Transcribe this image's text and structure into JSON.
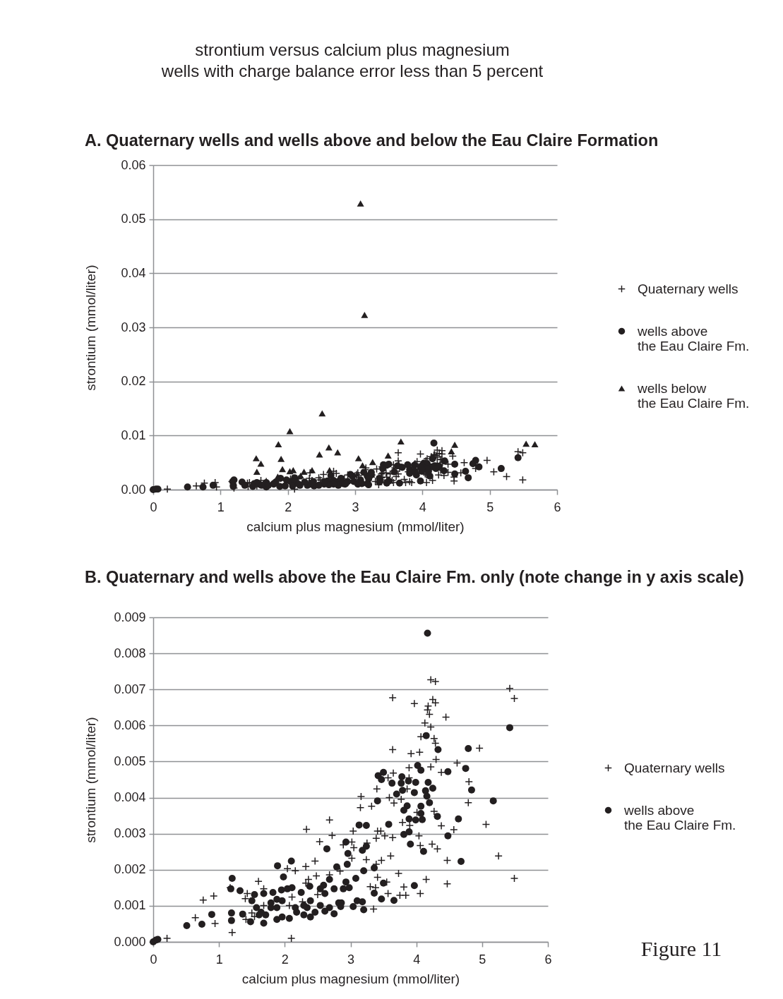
{
  "chart_data": [
    {
      "type": "scatter",
      "title": "A. Quaternary wells and wells above and below the Eau Claire Formation",
      "annotations": [
        "strontium versus calcium plus magnesium",
        "wells with charge balance error less than 5 percent"
      ],
      "xlabel": "calcium plus magnesium (mmol/liter)",
      "ylabel": "strontium (mmol/liter)",
      "xlim": [
        0,
        6
      ],
      "xticks": [
        0,
        1,
        2,
        3,
        4,
        5,
        6
      ],
      "ylim": [
        0,
        0.06
      ],
      "yticks": [
        {
          "value": 0,
          "label": "0.00"
        },
        0.01,
        0.02,
        0.03,
        0.04,
        0.05,
        0.06
      ],
      "grid": "y",
      "legend": "right",
      "series": [
        {
          "name": "Quaternary wells",
          "color": "#231f20",
          "marker": "cross",
          "x": [
            0.21,
            0.64,
            0.76,
            0.92,
            0.94,
            1.2,
            1.17,
            1.6,
            1.43,
            1.4,
            1.41,
            1.68,
            2.04,
            2.16,
            2.1,
            2.33,
            2.68,
            2.72,
            2.53,
            2.46,
            2.32,
            2.48,
            2.36,
            2.32,
            2.5,
            2.89,
            1.54,
            5.25,
            5.49,
            4.47,
            4.47,
            4.57,
            4.38,
            4.24,
            4.32,
            4.06,
            4.04,
            3.64,
            3.52,
            3.39,
            3.41,
            3.46,
            3.04,
            3.02,
            3.25,
            3.05,
            3.02,
            3.24,
            3.47,
            3.61,
            3.39,
            3.73,
            3.41,
            3.55,
            3.3,
            3.38,
            3.81,
            4.15,
            4.06,
            3.57,
            3.75,
            3.84,
            3.35,
            2.84,
            4.22,
            4.29,
            5.42,
            5.49,
            3.64,
            3.97,
            4.25,
            4.29,
            4.18,
            4.17,
            4.2,
            4.45,
            4.13,
            4.22,
            4.07,
            4.27,
            4.29,
            3.64,
            3.92,
            4.05,
            4.96,
            4.3,
            4.22,
            3.89,
            4.38,
            4.62,
            4.8,
            3.65,
            3.57,
            3.89,
            3.4,
            3.16,
            3.15,
            3.32,
            3.59,
            3.66,
            4.79,
            4.27,
            3.79,
            5.06
          ],
          "values": [
            0.0001,
            0.0007,
            0.0012,
            0.0013,
            0.0005,
            0.0003,
            0.0015,
            0.0017,
            0.0013,
            0.0012,
            0.0006,
            0.0015,
            0.002,
            0.002,
            0.0001,
            0.0031,
            0.0034,
            0.003,
            0.0028,
            0.0022,
            0.0021,
            0.0018,
            0.0017,
            0.0016,
            0.0013,
            0.0027,
            0.0007,
            0.0024,
            0.0018,
            0.0023,
            0.0016,
            0.0031,
            0.0032,
            0.0027,
            0.0026,
            0.0027,
            0.0029,
            0.0029,
            0.0029,
            0.0029,
            0.0031,
            0.0031,
            0.0031,
            0.0028,
            0.0027,
            0.0026,
            0.0023,
            0.0023,
            0.0023,
            0.0024,
            0.0022,
            0.0019,
            0.0018,
            0.0017,
            0.0015,
            0.0015,
            0.0015,
            0.0017,
            0.0013,
            0.0013,
            0.0013,
            0.0013,
            0.0009,
            0.002,
            0.0073,
            0.0072,
            0.007,
            0.0068,
            0.0068,
            0.0066,
            0.0067,
            0.0066,
            0.0065,
            0.0064,
            0.0063,
            0.0062,
            0.0061,
            0.006,
            0.0057,
            0.0056,
            0.0055,
            0.0053,
            0.0052,
            0.0053,
            0.0054,
            0.0051,
            0.0049,
            0.0048,
            0.0047,
            0.005,
            0.0044,
            0.0047,
            0.0046,
            0.0046,
            0.0042,
            0.004,
            0.0037,
            0.0038,
            0.004,
            0.0039,
            0.0039,
            0.0036,
            0.0033,
            0.0033
          ]
        },
        {
          "name": "wells above the Eau Claire Fm.",
          "color": "#231f20",
          "marker": "circle",
          "x": [
            0,
            0.04,
            0.07,
            0.51,
            0.74,
            0.89,
            1.2,
            1.18,
            1.32,
            1.19,
            1.19,
            1.36,
            1.48,
            1.54,
            1.5,
            1.57,
            1.68,
            1.68,
            1.82,
            1.89,
            1.98,
            2.1,
            2.04,
            2.11,
            1.88,
            1.96,
            2.07,
            2.18,
            2.29,
            2.39,
            2.34,
            2.25,
            2.38,
            2.54,
            2.64,
            2.79,
            2.68,
            2.59,
            2.75,
            2.75,
            2.68,
            2.82,
            1.71,
            1.79,
            2.16,
            2.46,
            2.61,
            2.54,
            1.79,
            1.61,
            4.48,
            4.68,
            3.91,
            4.11,
            3.81,
            2.93,
            2.96,
            3.24,
            3.18,
            3.36,
            3.2,
            3.08,
            3.5,
            3.36,
            3.47,
            3.66,
            3.97,
            2.89,
            2.98,
            2.86,
            3.04,
            3.1,
            3.18,
            3.2,
            2.85,
            4.17,
            5.42,
            4.15,
            4.33,
            4.79,
            4.02,
            4.07,
            4.48,
            4.75,
            4.84,
            5.17,
            3.5,
            3.42,
            3.47,
            3.63,
            3.78,
            3.88,
            3.99,
            4.18,
            4.25,
            3.7,
            3.97,
            4.14,
            4.2,
            3.41,
            3.81,
            4.07,
            4.32,
            3.89,
            3.99,
            4.09,
            4.64,
            3.13,
            3.24,
            3.58
          ],
          "values": [
            0,
            0.0001,
            0.0001,
            0.0005,
            0.0005,
            0.0008,
            0.0018,
            0.0015,
            0.0014,
            0.0008,
            0.0006,
            0.0008,
            0.0006,
            0.0013,
            0.0011,
            0.001,
            0.0013,
            0.0005,
            0.0014,
            0.0021,
            0.0018,
            0.0022,
            0.0015,
            0.0015,
            0.0006,
            0.0007,
            0.0007,
            0.0008,
            0.0008,
            0.0007,
            0.001,
            0.0014,
            0.0015,
            0.001,
            0.0026,
            0.0021,
            0.0017,
            0.0016,
            0.0015,
            0.0008,
            0.001,
            0.0011,
            0.0008,
            0.001,
            0.001,
            0.0008,
            0.0009,
            0.0015,
            0.0011,
            0.0008,
            0.0029,
            0.0022,
            0.0027,
            0.0025,
            0.003,
            0.0028,
            0.0025,
            0.0027,
            0.0025,
            0.0021,
            0.002,
            0.0018,
            0.0016,
            0.0014,
            0.0012,
            0.0012,
            0.0016,
            0.0015,
            0.0015,
            0.0011,
            0.001,
            0.0011,
            0.0011,
            0.0009,
            0.001,
            0.0086,
            0.0059,
            0.0057,
            0.0053,
            0.0054,
            0.0049,
            0.0048,
            0.0047,
            0.0048,
            0.0042,
            0.0039,
            0.0047,
            0.0046,
            0.0045,
            0.0044,
            0.0046,
            0.0045,
            0.0044,
            0.0044,
            0.0043,
            0.0041,
            0.0041,
            0.0042,
            0.0039,
            0.0039,
            0.0037,
            0.0038,
            0.0035,
            0.0034,
            0.0034,
            0.0034,
            0.0034,
            0.0032,
            0.0032,
            0.0033
          ]
        },
        {
          "name": "wells below the Eau Claire Fm.",
          "color": "#231f20",
          "marker": "triangle",
          "x": [
            1.53,
            1.6,
            1.54,
            1.86,
            1.9,
            1.92,
            1.85,
            2.03,
            2.03,
            2.08,
            2.19,
            2.24,
            2.36,
            2.47,
            2.51,
            2.61,
            2.62,
            2.74,
            3.05,
            3.08,
            3.11,
            3.14,
            3.26,
            3.49,
            3.68,
            4.43,
            4.48,
            5.54,
            5.67
          ],
          "values": [
            0.0058,
            0.0048,
            0.0033,
            0.0084,
            0.0057,
            0.0038,
            0.0024,
            0.0108,
            0.0034,
            0.0036,
            0.0026,
            0.0033,
            0.0036,
            0.0065,
            0.0141,
            0.0078,
            0.0036,
            0.0069,
            0.0058,
            0.0529,
            0.0045,
            0.0323,
            0.0051,
            0.0063,
            0.0089,
            0.0071,
            0.0083,
            0.0085,
            0.0084
          ]
        }
      ]
    },
    {
      "type": "scatter",
      "title": "B. Quaternary and wells above the Eau Claire Fm. only (note change in y axis scale)",
      "annotations": [
        "Figure 11"
      ],
      "xlabel": "calcium plus magnesium (mmol/liter)",
      "ylabel": "strontium (mmol/liter)",
      "xlim": [
        0,
        6
      ],
      "xticks": [
        0,
        1,
        2,
        3,
        4,
        5,
        6
      ],
      "ylim": [
        0,
        0.009
      ],
      "yticks": [
        {
          "value": 0,
          "label": "0.000"
        },
        0.001,
        0.002,
        0.003,
        0.004,
        0.005,
        0.006,
        0.007,
        0.008,
        0.009
      ],
      "grid": "y",
      "legend": "right",
      "series": [
        {
          "name": "Quaternary wells",
          "color": "#231f20",
          "marker": "cross",
          "x": [
            0.21,
            0.64,
            0.76,
            0.92,
            0.94,
            1.2,
            1.17,
            1.6,
            1.43,
            1.4,
            1.41,
            1.68,
            1.68,
            2.04,
            2.16,
            2.1,
            2.33,
            2.68,
            2.72,
            2.53,
            2.46,
            2.32,
            2.48,
            2.36,
            2.32,
            2.11,
            2.07,
            2.27,
            2.5,
            2.68,
            2.89,
            1.5,
            1.54,
            5.25,
            5.49,
            4.47,
            4.47,
            4.57,
            4.38,
            4.24,
            4.32,
            4.06,
            4.04,
            3.9,
            3.64,
            3.52,
            3.39,
            3.41,
            3.46,
            3.04,
            3.02,
            3.25,
            3.05,
            3.02,
            3.24,
            3.47,
            3.61,
            3.39,
            3.73,
            3.41,
            3.55,
            3.3,
            3.38,
            3.81,
            4.15,
            4.06,
            3.57,
            3.75,
            3.84,
            3.35,
            2.84,
            4.22,
            4.29,
            5.42,
            5.49,
            3.64,
            3.97,
            4.25,
            4.29,
            4.18,
            4.17,
            4.2,
            4.45,
            4.13,
            4.22,
            4.07,
            4.27,
            4.29,
            3.64,
            3.92,
            4.05,
            4.96,
            4.3,
            4.22,
            3.89,
            4.38,
            4.62,
            4.8,
            3.65,
            3.57,
            3.89,
            3.86,
            3.4,
            3.16,
            3.15,
            3.32,
            3.59,
            3.66,
            3.77,
            4.79,
            4.27,
            4.01,
            3.79,
            5.06
          ],
          "values": [
            0.0001,
            0.00067,
            0.00116,
            0.00127,
            0.00051,
            0.00026,
            0.0015,
            0.00168,
            0.00134,
            0.0012,
            0.00062,
            0.00147,
            0.00101,
            0.00203,
            0.00197,
            0.0001,
            0.00312,
            0.00338,
            0.00295,
            0.00278,
            0.00224,
            0.00209,
            0.00183,
            0.00173,
            0.00163,
            0.00124,
            0.00101,
            0.00111,
            0.00131,
            0.00186,
            0.00269,
            0.0008,
            0.0007,
            0.00238,
            0.00176,
            0.00226,
            0.00161,
            0.00311,
            0.00322,
            0.00271,
            0.00258,
            0.00267,
            0.00294,
            0.00323,
            0.00289,
            0.00294,
            0.00287,
            0.00307,
            0.00307,
            0.00307,
            0.00277,
            0.00274,
            0.00261,
            0.00232,
            0.00228,
            0.00226,
            0.00238,
            0.00215,
            0.0019,
            0.00179,
            0.00166,
            0.00153,
            0.0015,
            0.00152,
            0.00173,
            0.00134,
            0.00134,
            0.00129,
            0.00129,
            0.00091,
            0.00196,
            0.00727,
            0.00722,
            0.00703,
            0.00675,
            0.00677,
            0.00661,
            0.00672,
            0.00663,
            0.00654,
            0.00643,
            0.00631,
            0.00623,
            0.00607,
            0.00596,
            0.00569,
            0.00564,
            0.00551,
            0.00533,
            0.00522,
            0.00526,
            0.00537,
            0.00506,
            0.00485,
            0.00483,
            0.0047,
            0.00496,
            0.00444,
            0.00468,
            0.00455,
            0.00455,
            0.00424,
            0.00424,
            0.00403,
            0.00372,
            0.00376,
            0.004,
            0.00385,
            0.00395,
            0.00386,
            0.00362,
            0.00359,
            0.00331,
            0.00326
          ]
        },
        {
          "name": "wells above the Eau Claire Fm.",
          "color": "#231f20",
          "marker": "circle",
          "x": [
            0,
            0.04,
            0.07,
            0.51,
            0.74,
            0.89,
            1.2,
            1.18,
            1.32,
            1.19,
            1.19,
            1.36,
            1.48,
            1.54,
            1.5,
            1.57,
            1.68,
            1.68,
            1.82,
            1.89,
            1.98,
            2.1,
            1.95,
            2.04,
            2.11,
            1.88,
            1.88,
            1.96,
            2.07,
            2.18,
            2.29,
            2.39,
            2.34,
            2.25,
            2.38,
            2.54,
            2.64,
            2.79,
            2.68,
            2.59,
            2.61,
            2.75,
            2.75,
            2.68,
            2.82,
            1.71,
            1.64,
            1.79,
            1.88,
            1.96,
            2.16,
            2.29,
            2.39,
            2.46,
            2.61,
            2.54,
            1.79,
            1.61,
            4.48,
            4.68,
            3.91,
            4.11,
            3.81,
            3.89,
            2.93,
            2.96,
            3.24,
            3.18,
            2.95,
            3.36,
            3.2,
            3.08,
            3.5,
            3.36,
            3.47,
            3.66,
            3.97,
            2.93,
            2.89,
            2.98,
            2.86,
            3.04,
            3.1,
            3.18,
            3.2,
            2.85,
            4.17,
            5.42,
            4.15,
            4.33,
            4.79,
            4.02,
            4.07,
            4.48,
            4.75,
            4.84,
            5.17,
            3.5,
            3.42,
            3.47,
            3.63,
            3.78,
            3.77,
            3.88,
            3.99,
            4.18,
            4.25,
            3.79,
            3.7,
            3.97,
            4.14,
            4.16,
            4.2,
            3.41,
            3.86,
            3.81,
            4.07,
            4.07,
            4.32,
            3.89,
            3.99,
            4.09,
            4.64,
            3.13,
            3.24,
            3.58
          ],
          "values": [
            0,
            5e-05,
            7e-05,
            0.00045,
            0.00049,
            0.00076,
            0.00176,
            0.00147,
            0.00142,
            0.0008,
            0.00059,
            0.00077,
            0.00056,
            0.00131,
            0.00114,
            0.00095,
            0.00134,
            0.00052,
            0.00137,
            0.00211,
            0.0018,
            0.00224,
            0.00144,
            0.00147,
            0.0015,
            0.00095,
            0.00062,
            0.00069,
            0.00065,
            0.00082,
            0.00075,
            0.00069,
            0.00095,
            0.00137,
            0.00154,
            0.00101,
            0.00258,
            0.00208,
            0.00173,
            0.00157,
            0.00134,
            0.00147,
            0.00078,
            0.00095,
            0.00108,
            0.00075,
            0.00082,
            0.00095,
            0.00118,
            0.00114,
            0.00095,
            0.00101,
            0.00114,
            0.00082,
            0.00085,
            0.00147,
            0.00108,
            0.00075,
            0.00294,
            0.00223,
            0.00271,
            0.00251,
            0.00298,
            0.00305,
            0.00277,
            0.00245,
            0.00265,
            0.00254,
            0.00215,
            0.00205,
            0.00197,
            0.00176,
            0.00163,
            0.00135,
            0.00119,
            0.00115,
            0.00156,
            0.00166,
            0.00147,
            0.0015,
            0.00108,
            0.00098,
            0.00114,
            0.00111,
            0.00089,
            0.00098,
            0.00856,
            0.00594,
            0.00572,
            0.00533,
            0.00536,
            0.00489,
            0.00476,
            0.00472,
            0.00481,
            0.00421,
            0.00391,
            0.0047,
            0.00461,
            0.0045,
            0.0044,
            0.00458,
            0.0044,
            0.00446,
            0.00442,
            0.00442,
            0.00426,
            0.0042,
            0.0041,
            0.00414,
            0.00419,
            0.00404,
            0.00386,
            0.00391,
            0.00377,
            0.00365,
            0.00376,
            0.00356,
            0.00348,
            0.00341,
            0.00338,
            0.00339,
            0.00341,
            0.00324,
            0.00323,
            0.00326
          ]
        }
      ]
    }
  ]
}
